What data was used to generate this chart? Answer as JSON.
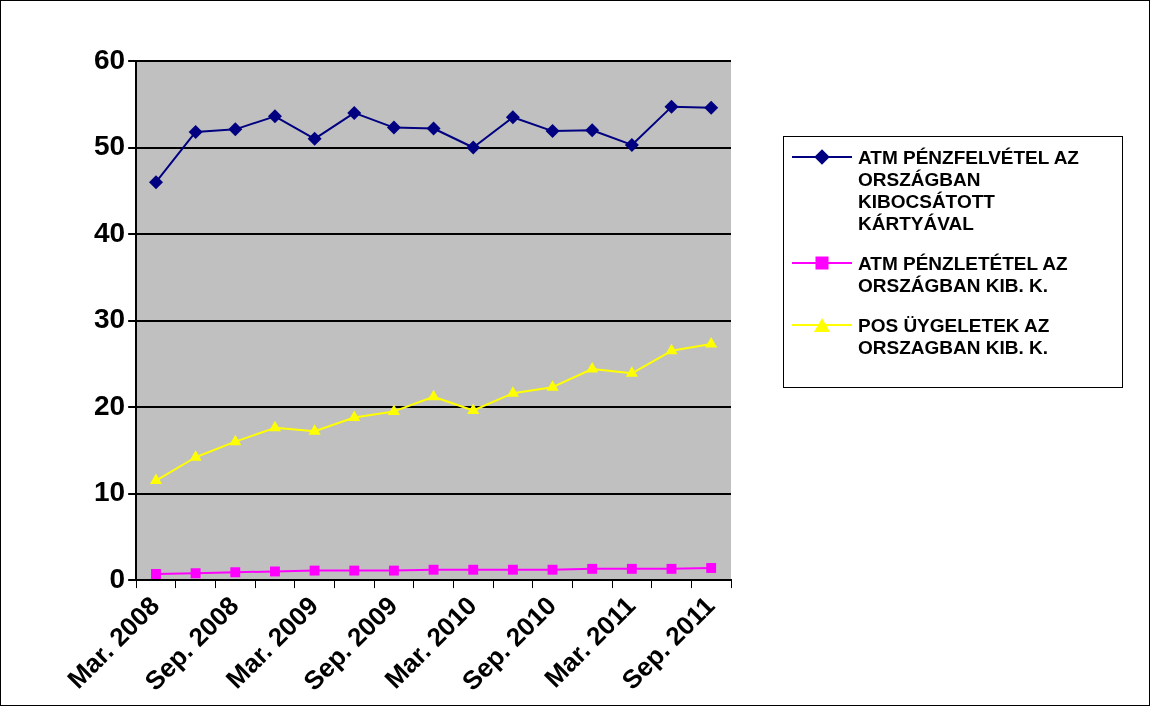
{
  "chart_data": {
    "type": "line",
    "categories": [
      "Mar. 2008",
      null,
      "Sep. 2008",
      null,
      "Mar. 2009",
      null,
      "Sep. 2009",
      null,
      "Mar. 2010",
      null,
      "Sep. 2010",
      null,
      "Mar. 2011",
      null,
      "Sep. 2011"
    ],
    "series": [
      {
        "name": "ATM PÉNZFELVÉTEL AZ ORSZÁGBAN KIBOCSÁTOTT KÁRTYÁVAL",
        "color": "#000080",
        "marker": "diamond",
        "values": [
          46,
          51.8,
          52.1,
          53.6,
          51,
          54,
          52.3,
          52.2,
          50,
          53.5,
          51.9,
          52,
          50.3,
          54.7,
          54.6
        ]
      },
      {
        "name": "ATM PÉNZLETÉTEL AZ ORSZÁGBAN KIB. K.",
        "color": "#ff00ff",
        "marker": "square",
        "values": [
          0.7,
          0.8,
          0.9,
          1,
          1.1,
          1.1,
          1.1,
          1.2,
          1.2,
          1.2,
          1.2,
          1.3,
          1.3,
          1.3,
          1.4
        ]
      },
      {
        "name": "POS ÜYGELETEK AZ ORSZAGBAN KIB. K.",
        "color": "#ffff00",
        "marker": "triangle",
        "values": [
          11.5,
          14.2,
          16,
          17.6,
          17.2,
          18.8,
          19.5,
          21.2,
          19.6,
          21.6,
          22.3,
          24.4,
          23.9,
          26.5,
          27.3
        ]
      }
    ],
    "ylim": [
      0,
      60
    ],
    "yticks": [
      0,
      10,
      20,
      30,
      40,
      50,
      60
    ],
    "grid": "y",
    "legend": "right",
    "line_style": "solid"
  }
}
